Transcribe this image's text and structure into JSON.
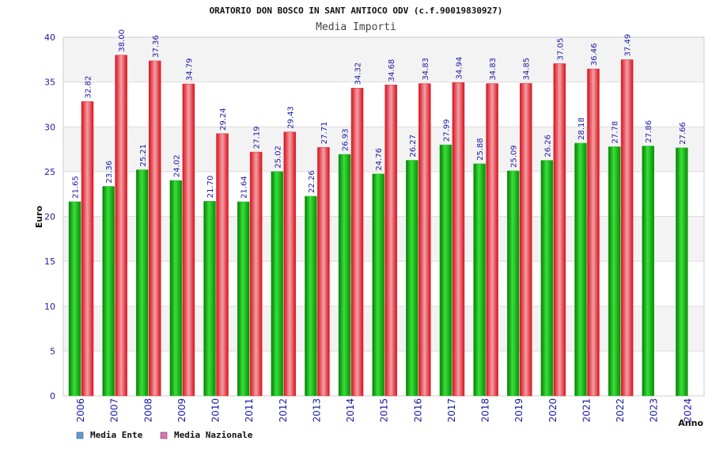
{
  "chart_data": {
    "type": "bar",
    "title": "ORATORIO DON BOSCO IN SANT ANTIOCO ODV (c.f.90019830927)",
    "subtitle": "Media Importi",
    "xlabel": "Anno",
    "ylabel": "Euro",
    "ylim": [
      0,
      40
    ],
    "yticks": [
      0,
      5,
      10,
      15,
      20,
      25,
      30,
      35,
      40
    ],
    "grid": true,
    "legend_position": "bottom-left",
    "categories": [
      "2006",
      "2007",
      "2008",
      "2009",
      "2010",
      "2011",
      "2012",
      "2013",
      "2014",
      "2015",
      "2016",
      "2017",
      "2018",
      "2019",
      "2020",
      "2021",
      "2022",
      "2023",
      "2024"
    ],
    "series": [
      {
        "name": "Media Ente",
        "color": "#1db81d",
        "legend_color": "#5b9bd5",
        "values": [
          21.65,
          23.36,
          25.21,
          24.02,
          21.7,
          21.64,
          25.02,
          22.26,
          26.93,
          24.76,
          26.27,
          27.99,
          25.88,
          25.09,
          26.26,
          28.18,
          27.78,
          27.86,
          27.66
        ],
        "labels": [
          "21.65",
          "23.36",
          "25.21",
          "24.02",
          "21.70",
          "21.64",
          "25.02",
          "22.26",
          "26.93",
          "24.76",
          "26.27",
          "27.99",
          "25.88",
          "25.09",
          "26.26",
          "28.18",
          "27.78",
          "27.86",
          "27.66"
        ]
      },
      {
        "name": "Media Nazionale",
        "color": "#e8222e",
        "legend_color": "#e36fb1",
        "values": [
          32.82,
          38.0,
          37.36,
          34.79,
          29.24,
          27.19,
          29.43,
          27.71,
          34.32,
          34.68,
          34.83,
          34.94,
          34.83,
          34.85,
          37.05,
          36.46,
          37.49,
          null,
          null
        ],
        "labels": [
          "32.82",
          "38.00",
          "37.36",
          "34.79",
          "29.24",
          "27.19",
          "29.43",
          "27.71",
          "34.32",
          "34.68",
          "34.83",
          "34.94",
          "34.83",
          "34.85",
          "37.05",
          "36.46",
          "37.49",
          null,
          null
        ]
      }
    ]
  }
}
